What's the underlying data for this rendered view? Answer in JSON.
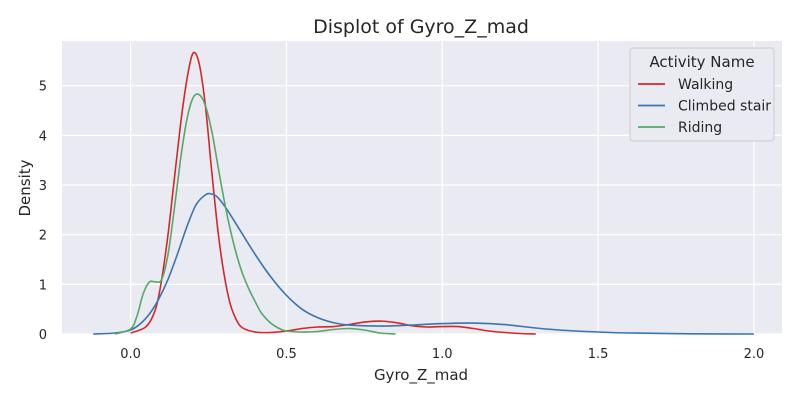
{
  "chart_data": {
    "type": "line",
    "title": "Displot of Gyro_Z_mad",
    "xlabel": "Gyro_Z_mad",
    "ylabel": "Density",
    "xlim": [
      -0.22,
      2.09
    ],
    "ylim": [
      0,
      5.9
    ],
    "xticks": [
      0.0,
      0.5,
      1.0,
      1.5,
      2.0
    ],
    "xtick_labels": [
      "0.0",
      "0.5",
      "1.0",
      "1.5",
      "2.0"
    ],
    "yticks": [
      0,
      1,
      2,
      3,
      4,
      5
    ],
    "ytick_labels": [
      "0",
      "1",
      "2",
      "3",
      "4",
      "5"
    ],
    "grid": true,
    "legend": {
      "title": "Activity Name",
      "placement": "top-right"
    },
    "series": [
      {
        "name": "Walking",
        "color": "#d62728",
        "points": [
          [
            0.0,
            0.02
          ],
          [
            0.05,
            0.15
          ],
          [
            0.08,
            0.5
          ],
          [
            0.1,
            1.1
          ],
          [
            0.12,
            2.0
          ],
          [
            0.14,
            3.1
          ],
          [
            0.16,
            4.2
          ],
          [
            0.18,
            5.1
          ],
          [
            0.2,
            5.65
          ],
          [
            0.22,
            5.45
          ],
          [
            0.24,
            4.6
          ],
          [
            0.26,
            3.3
          ],
          [
            0.28,
            2.1
          ],
          [
            0.3,
            1.2
          ],
          [
            0.32,
            0.6
          ],
          [
            0.34,
            0.28
          ],
          [
            0.36,
            0.12
          ],
          [
            0.4,
            0.04
          ],
          [
            0.45,
            0.03
          ],
          [
            0.5,
            0.06
          ],
          [
            0.55,
            0.11
          ],
          [
            0.6,
            0.14
          ],
          [
            0.65,
            0.15
          ],
          [
            0.7,
            0.19
          ],
          [
            0.75,
            0.24
          ],
          [
            0.8,
            0.26
          ],
          [
            0.85,
            0.23
          ],
          [
            0.9,
            0.17
          ],
          [
            0.95,
            0.14
          ],
          [
            1.0,
            0.15
          ],
          [
            1.05,
            0.15
          ],
          [
            1.1,
            0.11
          ],
          [
            1.15,
            0.06
          ],
          [
            1.2,
            0.03
          ],
          [
            1.25,
            0.01
          ],
          [
            1.3,
            0.0
          ]
        ]
      },
      {
        "name": "Climbed stair",
        "color": "#3a75af",
        "points": [
          [
            -0.12,
            0.0
          ],
          [
            -0.05,
            0.02
          ],
          [
            0.0,
            0.08
          ],
          [
            0.03,
            0.2
          ],
          [
            0.06,
            0.4
          ],
          [
            0.09,
            0.7
          ],
          [
            0.12,
            1.1
          ],
          [
            0.15,
            1.6
          ],
          [
            0.18,
            2.15
          ],
          [
            0.21,
            2.6
          ],
          [
            0.24,
            2.8
          ],
          [
            0.26,
            2.82
          ],
          [
            0.28,
            2.75
          ],
          [
            0.31,
            2.5
          ],
          [
            0.35,
            2.1
          ],
          [
            0.4,
            1.6
          ],
          [
            0.45,
            1.15
          ],
          [
            0.5,
            0.78
          ],
          [
            0.55,
            0.5
          ],
          [
            0.6,
            0.33
          ],
          [
            0.65,
            0.23
          ],
          [
            0.7,
            0.18
          ],
          [
            0.8,
            0.16
          ],
          [
            0.9,
            0.18
          ],
          [
            1.0,
            0.21
          ],
          [
            1.1,
            0.22
          ],
          [
            1.2,
            0.19
          ],
          [
            1.3,
            0.12
          ],
          [
            1.4,
            0.07
          ],
          [
            1.5,
            0.04
          ],
          [
            1.6,
            0.02
          ],
          [
            1.8,
            0.005
          ],
          [
            2.0,
            0.0
          ]
        ]
      },
      {
        "name": "Riding",
        "color": "#55a868",
        "points": [
          [
            -0.05,
            0.0
          ],
          [
            0.0,
            0.1
          ],
          [
            0.02,
            0.35
          ],
          [
            0.04,
            0.8
          ],
          [
            0.06,
            1.05
          ],
          [
            0.08,
            1.05
          ],
          [
            0.1,
            1.1
          ],
          [
            0.12,
            1.6
          ],
          [
            0.14,
            2.5
          ],
          [
            0.16,
            3.5
          ],
          [
            0.18,
            4.3
          ],
          [
            0.2,
            4.75
          ],
          [
            0.22,
            4.82
          ],
          [
            0.24,
            4.6
          ],
          [
            0.26,
            4.1
          ],
          [
            0.28,
            3.4
          ],
          [
            0.3,
            2.7
          ],
          [
            0.32,
            2.1
          ],
          [
            0.34,
            1.6
          ],
          [
            0.36,
            1.2
          ],
          [
            0.38,
            0.9
          ],
          [
            0.4,
            0.65
          ],
          [
            0.42,
            0.42
          ],
          [
            0.45,
            0.22
          ],
          [
            0.48,
            0.1
          ],
          [
            0.5,
            0.06
          ],
          [
            0.55,
            0.04
          ],
          [
            0.6,
            0.05
          ],
          [
            0.65,
            0.09
          ],
          [
            0.7,
            0.11
          ],
          [
            0.75,
            0.08
          ],
          [
            0.8,
            0.02
          ],
          [
            0.85,
            0.0
          ]
        ]
      }
    ]
  }
}
